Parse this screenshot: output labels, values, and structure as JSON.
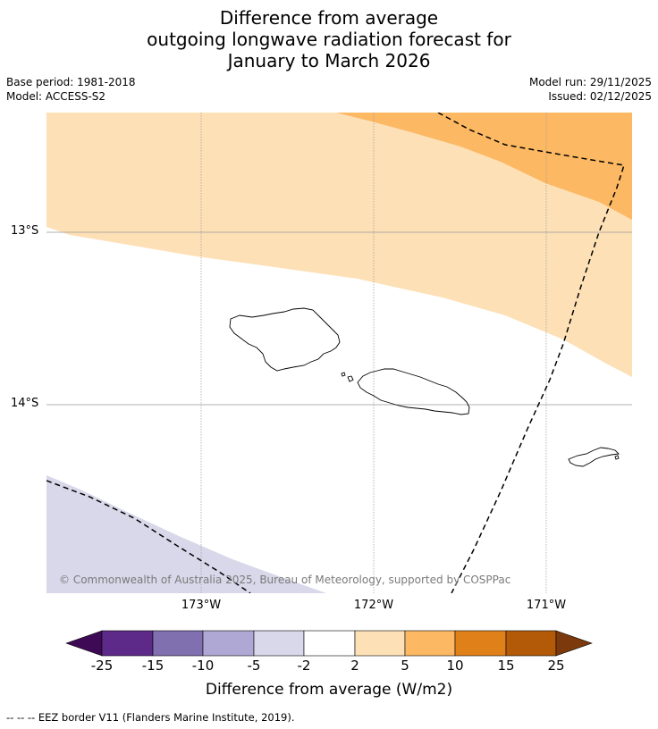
{
  "title": {
    "line1": "Difference from average",
    "line2": "outgoing longwave radiation forecast for",
    "line3": "January to March 2026"
  },
  "meta": {
    "base_period": "Base period: 1981-2018",
    "model": "Model: ACCESS-S2",
    "model_run": "Model run: 29/11/2025",
    "issued": "Issued: 02/12/2025"
  },
  "axes": {
    "lat_labels": [
      "13°S",
      "14°S"
    ],
    "lon_labels": [
      "173°W",
      "172°W",
      "171°W"
    ]
  },
  "copyright": "© Commonwealth of Australia 2025, Bureau of Meteorology, supported by COSPPac",
  "colorbar": {
    "ticks": [
      "-25",
      "-15",
      "-10",
      "-5",
      "-2",
      "2",
      "5",
      "10",
      "15",
      "25"
    ],
    "colors": [
      "#3f0a55",
      "#5e2a8a",
      "#8070b0",
      "#b0a8d4",
      "#d8d8ea",
      "#ffffff",
      "#fde0b6",
      "#fcb863",
      "#e08019",
      "#b25a08",
      "#7c3a0c"
    ],
    "title": "Difference from average (W/m2)"
  },
  "legend": {
    "eez": "--  --  -- EEZ border V11 (Flanders Marine Institute, 2019)."
  },
  "map_colors": {
    "band_5_10": "#fcb863",
    "band_2_5": "#fde0b6",
    "band_neg2_neg5": "#d8d8ea"
  }
}
